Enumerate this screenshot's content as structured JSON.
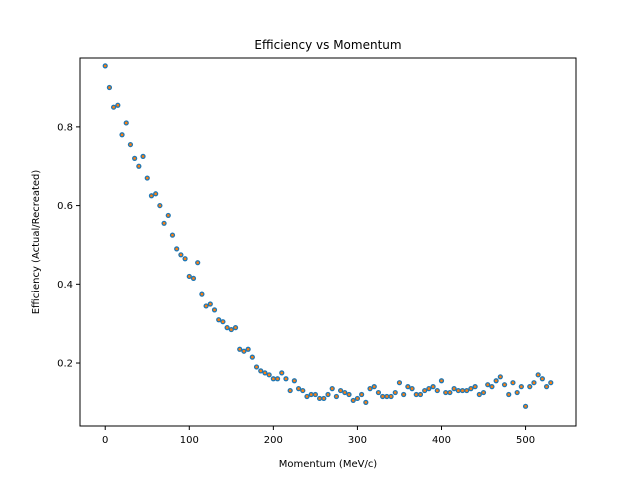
{
  "chart_data": {
    "type": "scatter",
    "title": "Efficiency vs Momentum",
    "xlabel": "Momentum (MeV/c)",
    "ylabel": "Efficiency (Actual/Recreated)",
    "xlim": [
      -30,
      560
    ],
    "ylim": [
      0.04,
      0.975
    ],
    "xticks": [
      0,
      100,
      200,
      300,
      400,
      500
    ],
    "yticks": [
      0.2,
      0.4,
      0.6,
      0.8
    ],
    "grid": false,
    "legend": "none",
    "colors": {
      "outer": "#1f77b4",
      "inner": "#ff7f0e"
    },
    "series": [
      {
        "x": [
          0,
          5,
          10,
          15,
          20,
          25,
          30,
          35,
          40,
          45,
          50,
          55,
          60,
          65,
          70,
          75,
          80,
          85,
          90,
          95,
          100,
          105,
          110,
          115,
          120,
          125,
          130,
          135,
          140,
          145,
          150,
          155,
          160,
          165,
          170,
          175,
          180,
          185,
          190,
          195,
          200,
          205,
          210,
          215,
          220,
          225,
          230,
          235,
          240,
          245,
          250,
          255,
          260,
          265,
          270,
          275,
          280,
          285,
          290,
          295,
          300,
          305,
          310,
          315,
          320,
          325,
          330,
          335,
          340,
          345,
          350,
          355,
          360,
          365,
          370,
          375,
          380,
          385,
          390,
          395,
          400,
          405,
          410,
          415,
          420,
          425,
          430,
          435,
          440,
          445,
          450,
          455,
          460,
          465,
          470,
          475,
          480,
          485,
          490,
          495,
          500,
          505,
          510,
          515,
          520,
          525,
          530
        ],
        "y": [
          0.955,
          0.9,
          0.85,
          0.855,
          0.78,
          0.81,
          0.755,
          0.72,
          0.7,
          0.725,
          0.67,
          0.625,
          0.63,
          0.6,
          0.555,
          0.575,
          0.525,
          0.49,
          0.475,
          0.465,
          0.42,
          0.415,
          0.455,
          0.375,
          0.345,
          0.35,
          0.335,
          0.31,
          0.305,
          0.29,
          0.285,
          0.29,
          0.235,
          0.23,
          0.235,
          0.215,
          0.19,
          0.18,
          0.175,
          0.17,
          0.16,
          0.16,
          0.175,
          0.16,
          0.13,
          0.155,
          0.135,
          0.13,
          0.115,
          0.12,
          0.12,
          0.11,
          0.11,
          0.12,
          0.135,
          0.115,
          0.13,
          0.125,
          0.12,
          0.105,
          0.11,
          0.12,
          0.1,
          0.135,
          0.14,
          0.125,
          0.115,
          0.115,
          0.115,
          0.125,
          0.15,
          0.12,
          0.14,
          0.135,
          0.12,
          0.12,
          0.13,
          0.135,
          0.14,
          0.13,
          0.155,
          0.125,
          0.125,
          0.135,
          0.13,
          0.13,
          0.13,
          0.135,
          0.14,
          0.12,
          0.125,
          0.145,
          0.14,
          0.155,
          0.165,
          0.145,
          0.12,
          0.15,
          0.125,
          0.14,
          0.09,
          0.14,
          0.15,
          0.17,
          0.16,
          0.14,
          0.15
        ]
      }
    ]
  }
}
